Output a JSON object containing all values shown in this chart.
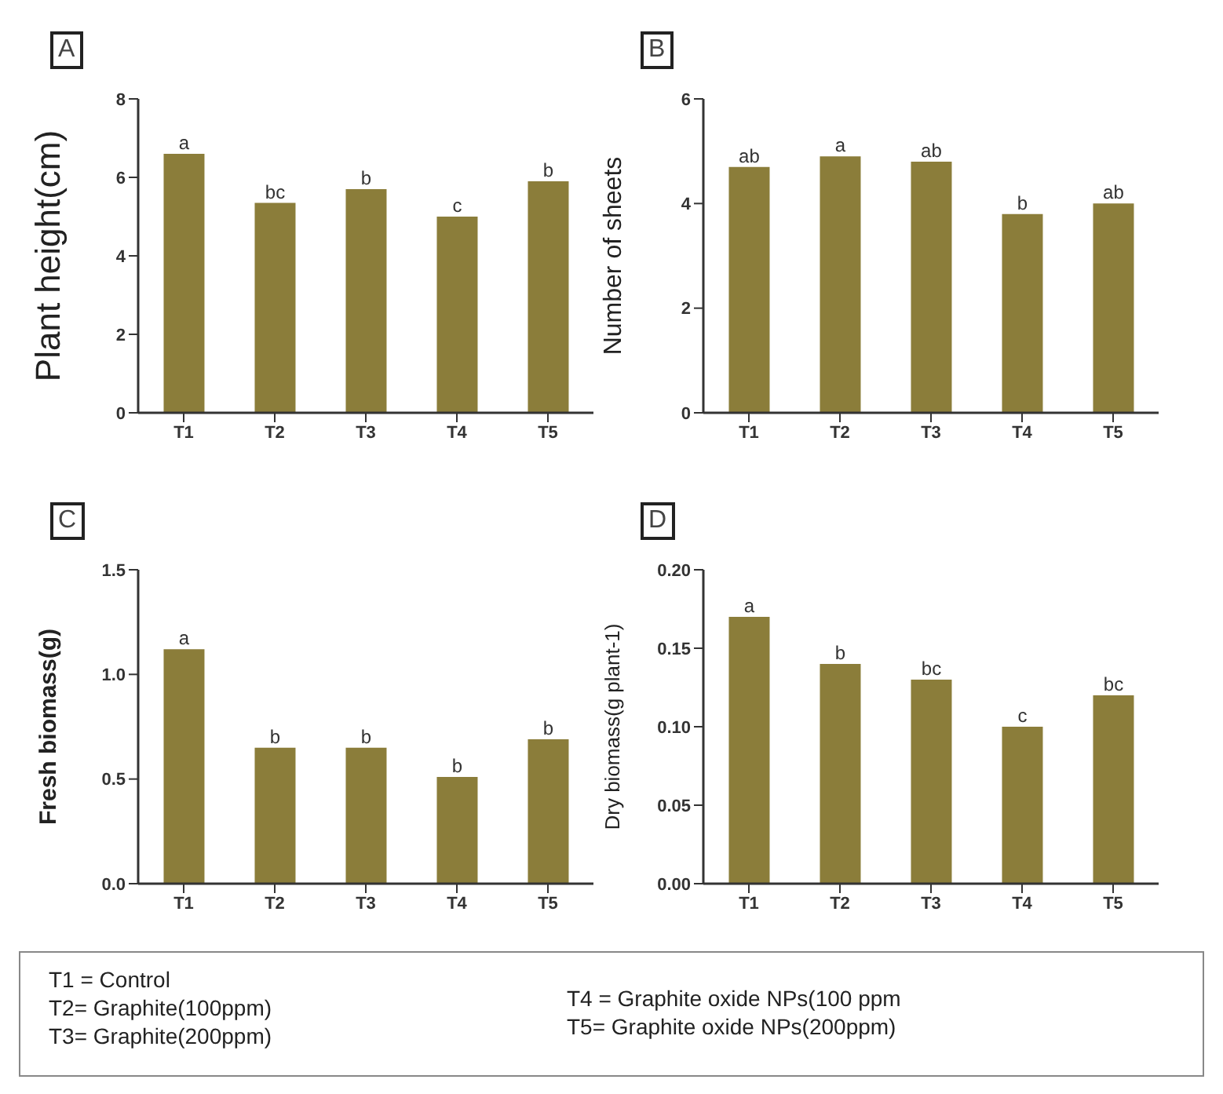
{
  "chart_data": [
    {
      "type": "bar",
      "title": "A",
      "ylabel": "Plant height(cm)",
      "categories": [
        "T1",
        "T2",
        "T3",
        "T4",
        "T5"
      ],
      "values": [
        6.6,
        5.35,
        5.7,
        5.0,
        5.9
      ],
      "value_labels": [
        "a",
        "bc",
        "b",
        "c",
        "b"
      ],
      "color": "#8b7d3a",
      "ylim": [
        0,
        8
      ],
      "yticks": [
        0,
        2,
        4,
        6,
        8
      ],
      "grid": false,
      "legend": false
    },
    {
      "type": "bar",
      "title": "B",
      "ylabel": "Number of sheets",
      "categories": [
        "T1",
        "T2",
        "T3",
        "T4",
        "T5"
      ],
      "values": [
        4.7,
        4.9,
        4.8,
        3.8,
        4.0
      ],
      "value_labels": [
        "ab",
        "a",
        "ab",
        "b",
        "ab"
      ],
      "color": "#8b7d3a",
      "ylim": [
        0,
        6
      ],
      "yticks": [
        0,
        2,
        4,
        6
      ],
      "grid": false,
      "legend": false
    },
    {
      "type": "bar",
      "title": "C",
      "ylabel": "Fresh biomass(g)",
      "categories": [
        "T1",
        "T2",
        "T3",
        "T4",
        "T5"
      ],
      "values": [
        1.12,
        0.65,
        0.65,
        0.51,
        0.69
      ],
      "value_labels": [
        "a",
        "b",
        "b",
        "b",
        "b"
      ],
      "color": "#8b7d3a",
      "ylim": [
        0,
        1.5
      ],
      "yticks": [
        {
          "value": 0,
          "label": "0.0"
        },
        {
          "value": 0.5,
          "label": "0.5"
        },
        {
          "value": 1,
          "label": "1.0"
        },
        {
          "value": 1.5,
          "label": "1.5"
        }
      ],
      "grid": false,
      "legend": false
    },
    {
      "type": "bar",
      "title": "D",
      "ylabel": "Dry biomass(g plant-1)",
      "categories": [
        "T1",
        "T2",
        "T3",
        "T4",
        "T5"
      ],
      "values": [
        0.17,
        0.14,
        0.13,
        0.1,
        0.12
      ],
      "value_labels": [
        "a",
        "b",
        "bc",
        "c",
        "bc"
      ],
      "color": "#8b7d3a",
      "ylim": [
        0,
        0.2
      ],
      "yticks": [
        {
          "value": 0,
          "label": "0.00"
        },
        {
          "value": 0.05,
          "label": "0.05"
        },
        {
          "value": 0.1,
          "label": "0.10"
        },
        {
          "value": 0.15,
          "label": "0.15"
        },
        {
          "value": 0.2,
          "label": "0.20"
        }
      ],
      "grid": false,
      "legend": false
    },
    {
      "type": "other",
      "annotations": [
        "T1 = Control",
        "T2= Graphite(100ppm)",
        "T3= Graphite(200ppm)",
        "T4 = Graphite oxide NPs(100 ppm",
        "T5= Graphite oxide NPs(200ppm)"
      ]
    }
  ]
}
